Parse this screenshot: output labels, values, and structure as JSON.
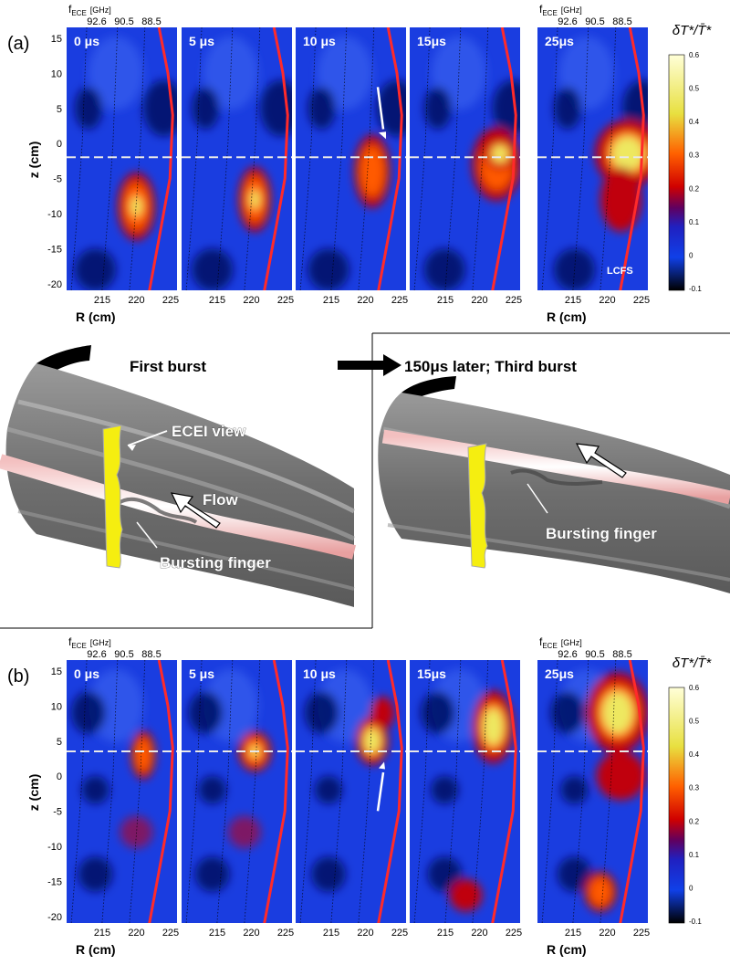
{
  "figure": {
    "rows": [
      {
        "label": "(a)",
        "freq_axis": {
          "symbol": "f",
          "subscript": "ECE",
          "unit": "[GHz]",
          "ticks": [
            "92.6",
            "90.5",
            "88.5"
          ]
        },
        "y_label": "z (cm)",
        "x_label": "R (cm)",
        "yticks": [
          "15",
          "10",
          "5",
          "0",
          "-5",
          "-10",
          "-15",
          "-20"
        ],
        "xticks": [
          "215",
          "220",
          "225"
        ],
        "panels": [
          "0 μs",
          "5 μs",
          "10 μs",
          "15μs",
          "25μs"
        ],
        "boundary_label": "LCFS",
        "colorbar": {
          "title": "δT*/T̄*",
          "ticks": [
            "0.6",
            "0.5",
            "0.4",
            "0.3",
            "0.2",
            "0.1",
            "0",
            "-0.1"
          ]
        }
      },
      {
        "label": "(b)",
        "freq_axis": {
          "symbol": "f",
          "subscript": "ECE",
          "unit": "[GHz]",
          "ticks": [
            "92.6",
            "90.5",
            "88.5"
          ]
        },
        "y_label": "z (cm)",
        "x_label": "R (cm)",
        "yticks": [
          "15",
          "10",
          "5",
          "0",
          "-5",
          "-10",
          "-15",
          "-20"
        ],
        "xticks": [
          "215",
          "220",
          "225"
        ],
        "panels": [
          "0 μs",
          "5 μs",
          "10 μs",
          "15μs",
          "25μs"
        ],
        "colorbar": {
          "title": "δT*/T̄*",
          "ticks": [
            "0.6",
            "0.5",
            "0.4",
            "0.3",
            "0.2",
            "0.1",
            "0",
            "-0.1"
          ]
        }
      }
    ],
    "illustration": {
      "left_title": "First burst",
      "right_title": "150μs later; Third burst",
      "ecei_label": "ECEI view",
      "flow_label": "Flow",
      "finger_label_left": "Bursting finger",
      "finger_label_right": "Bursting finger"
    }
  }
}
